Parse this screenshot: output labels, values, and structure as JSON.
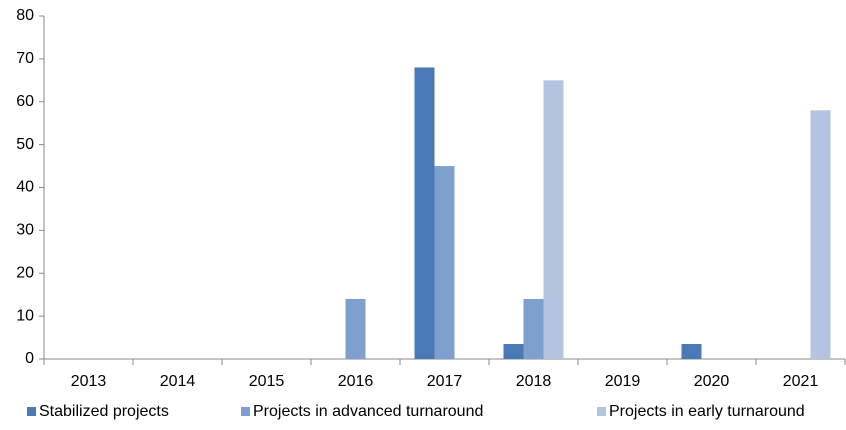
{
  "chart_data": {
    "type": "bar",
    "categories": [
      "2013",
      "2014",
      "2015",
      "2016",
      "2017",
      "2018",
      "2019",
      "2020",
      "2021"
    ],
    "series": [
      {
        "name": "Stabilized projects",
        "color": "#4a7ab5",
        "values": [
          0,
          0,
          0,
          0,
          68,
          3.5,
          0,
          3.5,
          0
        ]
      },
      {
        "name": "Projects in advanced turnaround",
        "color": "#7f9fcf",
        "values": [
          0,
          0,
          0,
          14,
          45,
          14,
          0,
          0,
          0
        ]
      },
      {
        "name": "Projects in early turnaround",
        "color": "#b4c3e0",
        "values": [
          0,
          0,
          0,
          0,
          0,
          65,
          0,
          0,
          58
        ]
      }
    ],
    "ylim": [
      0,
      80
    ],
    "yticks": [
      0,
      10,
      20,
      30,
      40,
      50,
      60,
      70,
      80
    ],
    "grid": false,
    "legend": "bottom"
  }
}
